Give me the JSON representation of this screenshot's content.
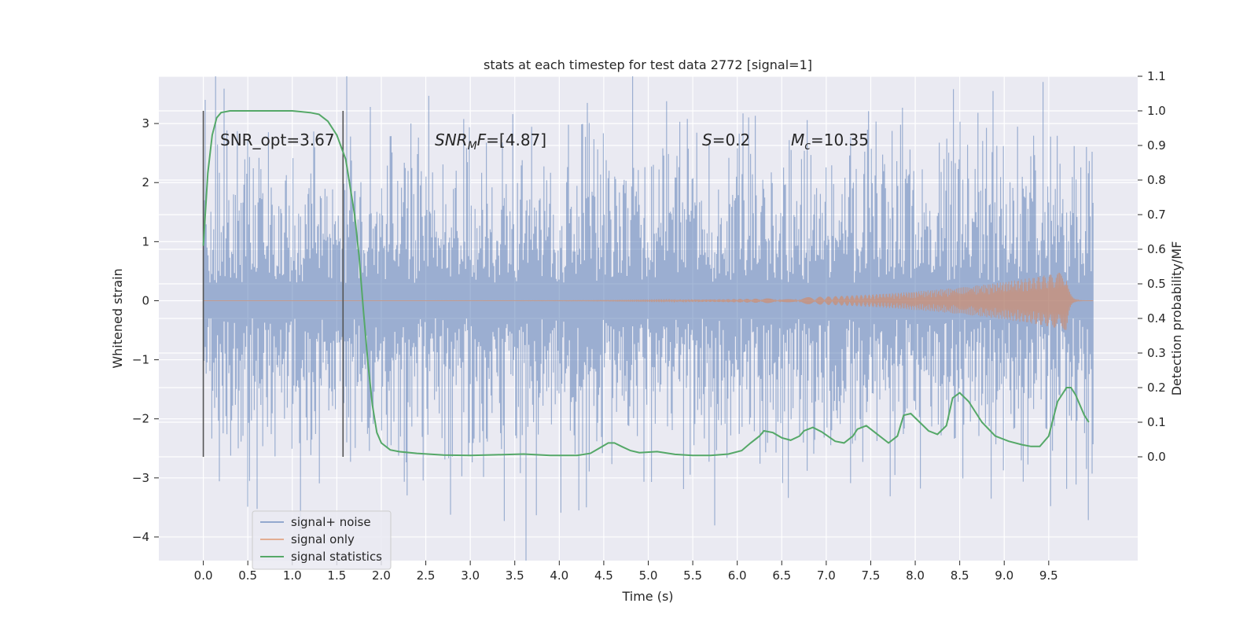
{
  "chart_data": {
    "type": "line",
    "title": "stats at each timestep for test data 2772 [signal=1]",
    "xlabel": "Time (s)",
    "ylabel": "Whitened strain",
    "y2label": "Detection probability/MF",
    "xlim": [
      -0.5,
      10.5
    ],
    "ylim": [
      -4.4,
      3.8
    ],
    "y2lim": [
      -0.3,
      1.1
    ],
    "xticks": [
      0.0,
      0.5,
      1.0,
      1.5,
      2.0,
      2.5,
      3.0,
      3.5,
      4.0,
      4.5,
      5.0,
      5.5,
      6.0,
      6.5,
      7.0,
      7.5,
      8.0,
      8.5,
      9.0,
      9.5
    ],
    "yticks": [
      -4,
      -3,
      -2,
      -1,
      0,
      1,
      2,
      3
    ],
    "y2ticks": [
      0.0,
      0.1,
      0.2,
      0.3,
      0.4,
      0.5,
      0.6,
      0.7,
      0.8,
      0.9,
      1.0,
      1.1
    ],
    "grid": true,
    "legend_position": "lower-left",
    "vlines": [
      0.0,
      1.57
    ],
    "annotations": {
      "snr_opt": "SNR_opt=3.67",
      "snr_mf": "=[4.87]",
      "s": "=0.2",
      "mc": "=10.35"
    },
    "series": [
      {
        "name": "signal+ noise",
        "color": "#4c72b0",
        "axis": "left",
        "x_range": [
          0.0,
          10.0
        ],
        "envelope": 2.0
      },
      {
        "name": "signal only",
        "color": "#dd8452",
        "axis": "left",
        "x_range": [
          0.0,
          10.0
        ],
        "peak_time": 9.7,
        "peak_amplitude": 0.5
      },
      {
        "name": "signal statistics",
        "color": "#55a868",
        "axis": "right",
        "x": [
          0.0,
          0.05,
          0.1,
          0.15,
          0.2,
          0.3,
          0.5,
          0.8,
          1.0,
          1.2,
          1.3,
          1.4,
          1.5,
          1.6,
          1.7,
          1.75,
          1.8,
          1.85,
          1.9,
          1.95,
          2.0,
          2.1,
          2.2,
          2.4,
          2.7,
          3.0,
          3.3,
          3.6,
          3.9,
          4.2,
          4.35,
          4.45,
          4.55,
          4.62,
          4.7,
          4.8,
          4.9,
          5.1,
          5.3,
          5.5,
          5.7,
          5.9,
          6.05,
          6.15,
          6.25,
          6.3,
          6.4,
          6.5,
          6.6,
          6.7,
          6.75,
          6.85,
          6.95,
          7.1,
          7.2,
          7.3,
          7.35,
          7.45,
          7.55,
          7.7,
          7.8,
          7.87,
          7.95,
          8.05,
          8.15,
          8.25,
          8.35,
          8.42,
          8.5,
          8.6,
          8.75,
          8.9,
          9.05,
          9.2,
          9.3,
          9.4,
          9.5,
          9.6,
          9.7,
          9.75,
          9.8,
          9.9,
          9.95
        ],
        "values": [
          0.61,
          0.82,
          0.93,
          0.98,
          0.995,
          1.0,
          1.0,
          1.0,
          1.0,
          0.995,
          0.99,
          0.97,
          0.93,
          0.86,
          0.7,
          0.58,
          0.42,
          0.27,
          0.15,
          0.07,
          0.04,
          0.02,
          0.015,
          0.01,
          0.005,
          0.004,
          0.006,
          0.008,
          0.004,
          0.004,
          0.01,
          0.025,
          0.04,
          0.04,
          0.03,
          0.018,
          0.012,
          0.015,
          0.007,
          0.004,
          0.004,
          0.008,
          0.018,
          0.04,
          0.06,
          0.075,
          0.07,
          0.055,
          0.048,
          0.06,
          0.075,
          0.085,
          0.072,
          0.045,
          0.04,
          0.06,
          0.08,
          0.09,
          0.07,
          0.04,
          0.06,
          0.12,
          0.125,
          0.1,
          0.075,
          0.065,
          0.09,
          0.17,
          0.185,
          0.16,
          0.1,
          0.06,
          0.045,
          0.035,
          0.03,
          0.03,
          0.06,
          0.16,
          0.2,
          0.2,
          0.18,
          0.12,
          0.1
        ]
      }
    ]
  }
}
